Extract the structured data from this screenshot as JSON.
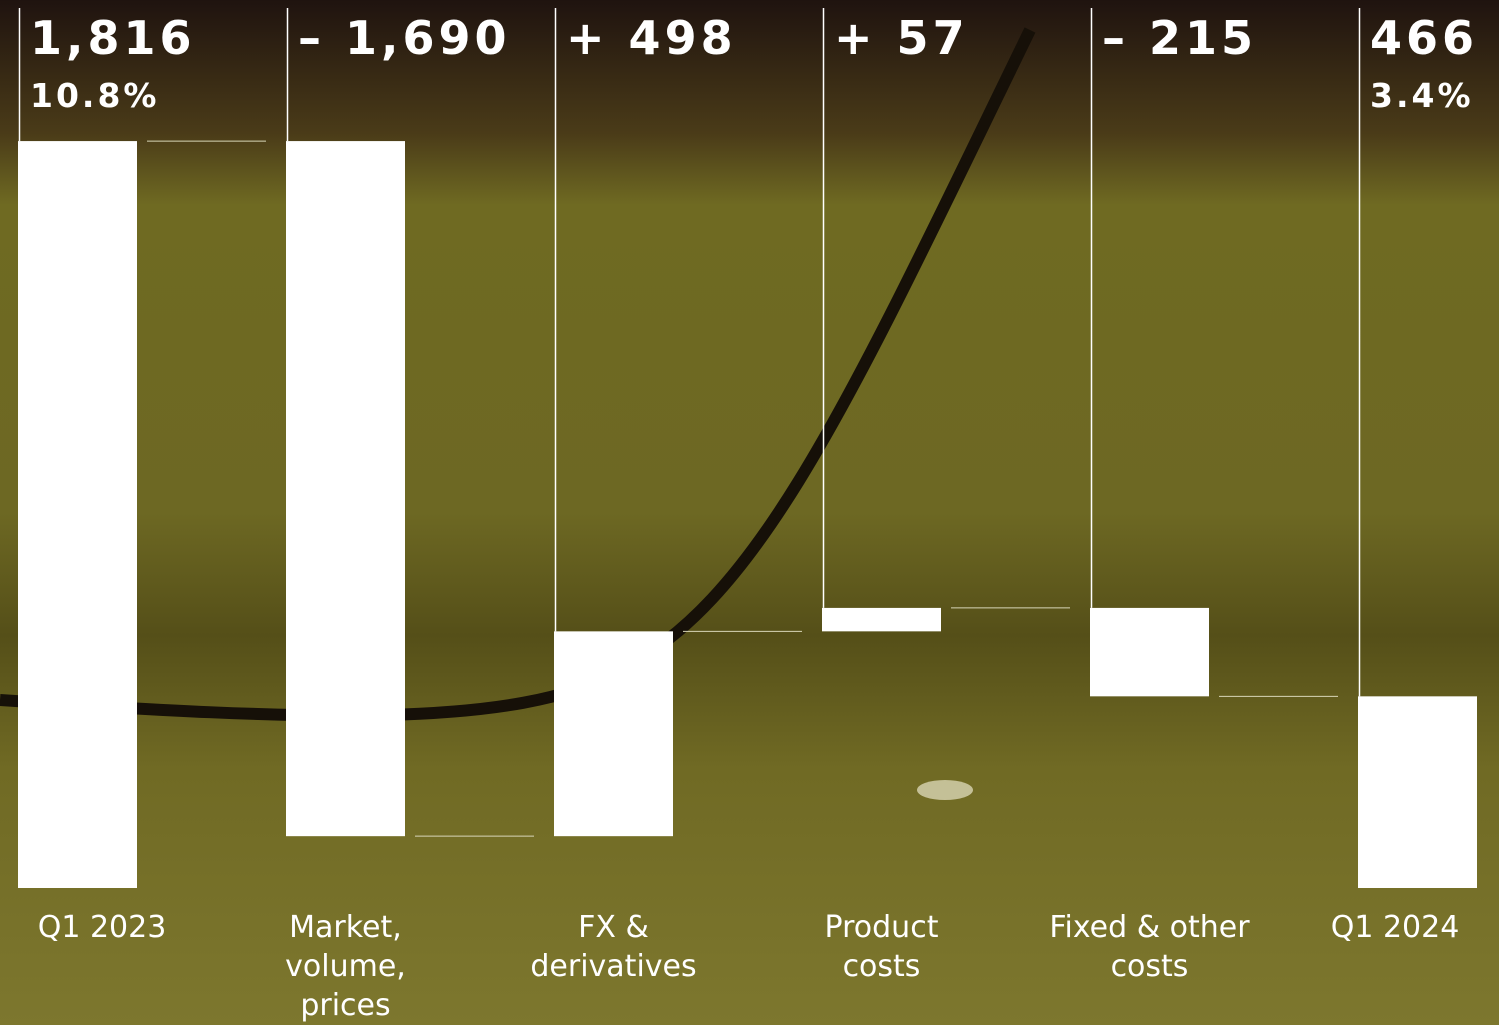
{
  "chart_data": {
    "type": "waterfall",
    "categories": [
      "Q1 2023",
      "Market, volume, prices",
      "FX & derivatives",
      "Product costs",
      "Fixed & other costs",
      "Q1 2024"
    ],
    "values": [
      1816,
      -1690,
      498,
      57,
      -215,
      466
    ],
    "value_labels": [
      "1,816",
      "– 1,690",
      "+ 498",
      "+ 57",
      "– 215",
      "466"
    ],
    "measure": [
      "absolute",
      "relative",
      "relative",
      "relative",
      "relative",
      "absolute"
    ],
    "margins": [
      10.8,
      null,
      null,
      null,
      null,
      3.4
    ],
    "margin_labels": [
      "10.8%",
      null,
      null,
      null,
      null,
      "3.4%"
    ],
    "color": "#ffffff",
    "ylim": [
      0,
      2000
    ]
  }
}
